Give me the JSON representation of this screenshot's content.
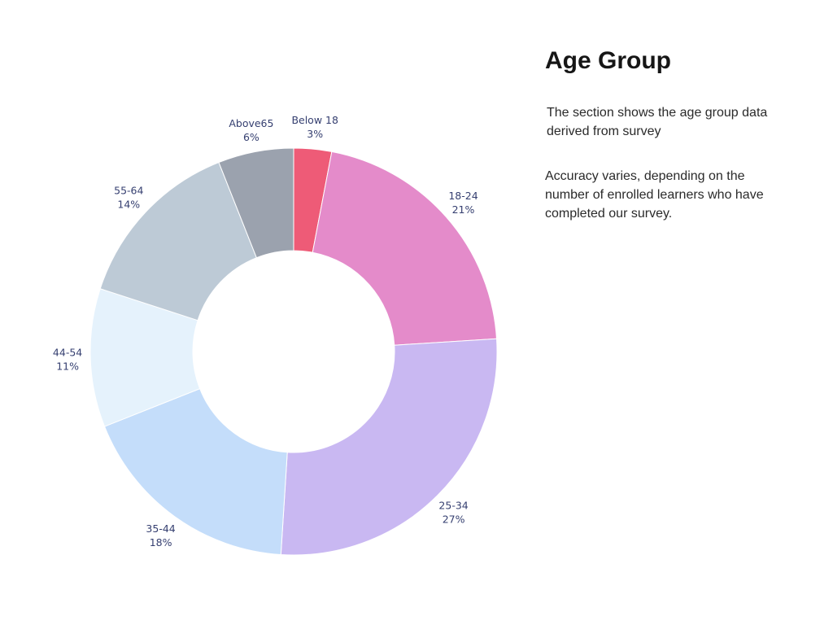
{
  "page": {
    "background": "#ffffff"
  },
  "panel": {
    "title": "Age Group",
    "description_1": "The section shows the age group data derived from survey",
    "description_2": "Accuracy varies, depending on the number of enrolled learners who have completed our survey."
  },
  "chart_data": {
    "type": "pie",
    "subtype": "donut",
    "title": "Age Group",
    "categories": [
      "Below 18",
      "18-24",
      "25-34",
      "35-44",
      "44-54",
      "55-64",
      "Above65"
    ],
    "values": [
      3,
      21,
      27,
      18,
      11,
      14,
      6
    ],
    "unit": "%",
    "colors": [
      "#ee5b77",
      "#e48bca",
      "#c9b8f2",
      "#c4ddfa",
      "#e5f2fc",
      "#bdcad6",
      "#9ba2ae"
    ],
    "label_color": "#353f70",
    "hole_ratio": 0.5,
    "start_angle_deg": 0,
    "direction": "clockwise",
    "labels_position": "outside",
    "legend": "none"
  }
}
